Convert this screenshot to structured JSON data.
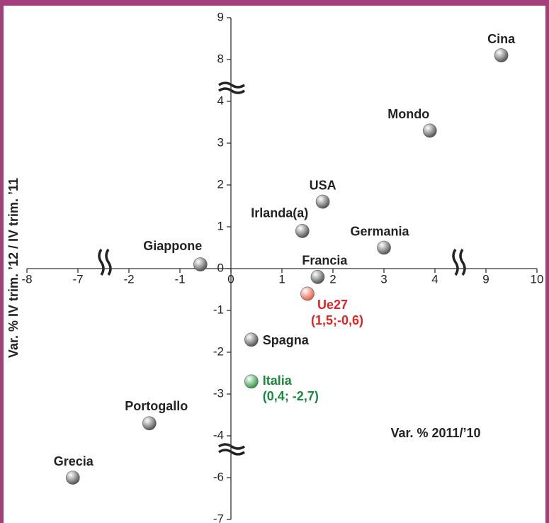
{
  "chart_data": {
    "type": "scatter",
    "y_label": "Var. % IV trim. ’12 / IV trim. ’11",
    "x_label": "Var. % 2011/’10",
    "xticks": [
      -8,
      -7,
      -2,
      -1,
      0,
      1,
      2,
      3,
      4,
      9,
      10
    ],
    "yticks": [
      9,
      8,
      4,
      3,
      2,
      1,
      0,
      -1,
      -2,
      -3,
      -4,
      -6,
      -7
    ],
    "xlim": [
      -8,
      10
    ],
    "ylim": [
      -7,
      9
    ],
    "labels": [
      "Cina",
      "Mondo",
      "USA",
      "Irlanda(a)",
      "Germania",
      "Giappone",
      "Francia",
      "Ue27",
      "Spagna",
      "Italia",
      "Portogallo",
      "Grecia"
    ],
    "x": [
      9.3,
      3.9,
      1.8,
      1.4,
      3.0,
      -0.6,
      1.7,
      1.5,
      0.4,
      0.4,
      -1.6,
      -7.1
    ],
    "y": [
      8.1,
      3.3,
      1.6,
      0.9,
      0.5,
      0.1,
      -0.2,
      -0.6,
      -1.7,
      -2.7,
      -3.7,
      -6.0
    ],
    "value_labels": [
      null,
      null,
      null,
      null,
      null,
      null,
      null,
      "(1,5;-0,6)",
      null,
      "(0,4; -2,7)",
      null,
      null
    ],
    "colors": [
      "#9a9a9a",
      "#9a9a9a",
      "#9a9a9a",
      "#9a9a9a",
      "#9a9a9a",
      "#9a9a9a",
      "#9a9a9a",
      "#e8604a",
      "#9a9a9a",
      "#2e9a46",
      "#9a9a9a",
      "#9a9a9a"
    ],
    "label_colors": [
      "#222222",
      "#222222",
      "#222222",
      "#222222",
      "#222222",
      "#222222",
      "#222222",
      "#e02424",
      "#222222",
      "#1a8a3a",
      "#222222",
      "#222222"
    ]
  }
}
